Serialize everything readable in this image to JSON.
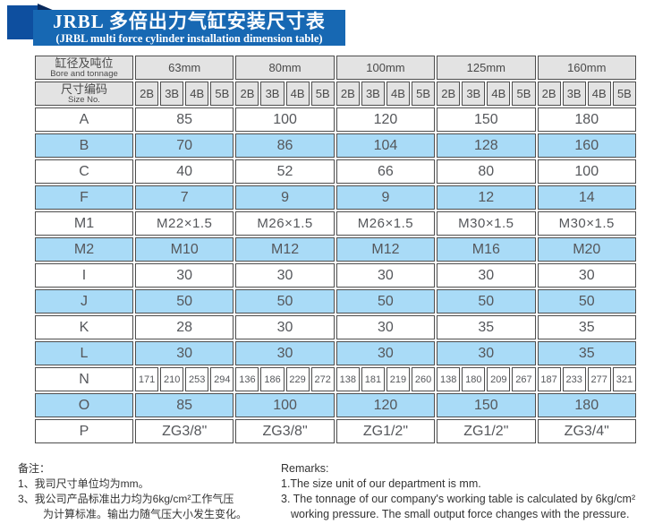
{
  "banner": {
    "title_cn": "JRBL 多倍出力气缸安装尺寸表",
    "title_en": "(JRBL multi force cylinder installation dimension table)"
  },
  "colors": {
    "banner_blue": "#1768b3",
    "ribbon_blue": "#0e4f9f",
    "fold_navy": "#092a5c",
    "header_gray": "#e3e3e3",
    "row_blue": "#a9dbf7",
    "border_gray": "#4d4d4d"
  },
  "table": {
    "corner_row1": {
      "cn": "缸径及吨位",
      "en": "Bore and tonnage"
    },
    "corner_row2": {
      "cn": "尺寸编码",
      "en": "Size No."
    },
    "bores": [
      "63mm",
      "80mm",
      "100mm",
      "125mm",
      "160mm"
    ],
    "size_codes": [
      "2B",
      "3B",
      "4B",
      "5B"
    ],
    "rows": [
      {
        "label": "A",
        "shade": false,
        "span": true,
        "values": [
          "85",
          "100",
          "120",
          "150",
          "180"
        ]
      },
      {
        "label": "B",
        "shade": true,
        "span": true,
        "values": [
          "70",
          "86",
          "104",
          "128",
          "160"
        ]
      },
      {
        "label": "C",
        "shade": false,
        "span": true,
        "values": [
          "40",
          "52",
          "66",
          "80",
          "100"
        ]
      },
      {
        "label": "F",
        "shade": true,
        "span": true,
        "values": [
          "7",
          "9",
          "9",
          "12",
          "14"
        ]
      },
      {
        "label": "M1",
        "shade": false,
        "span": true,
        "m1": true,
        "values": [
          "M22×1.5",
          "M26×1.5",
          "M26×1.5",
          "M30×1.5",
          "M30×1.5"
        ]
      },
      {
        "label": "M2",
        "shade": true,
        "span": true,
        "values": [
          "M10",
          "M12",
          "M12",
          "M16",
          "M20"
        ]
      },
      {
        "label": "I",
        "shade": false,
        "span": true,
        "values": [
          "30",
          "30",
          "30",
          "30",
          "30"
        ]
      },
      {
        "label": "J",
        "shade": true,
        "span": true,
        "values": [
          "50",
          "50",
          "50",
          "50",
          "50"
        ]
      },
      {
        "label": "K",
        "shade": false,
        "span": true,
        "values": [
          "28",
          "30",
          "30",
          "35",
          "35"
        ]
      },
      {
        "label": "L",
        "shade": true,
        "span": true,
        "values": [
          "30",
          "30",
          "30",
          "30",
          "35"
        ]
      },
      {
        "label": "N",
        "shade": false,
        "span": false,
        "values": [
          [
            "171",
            "210",
            "253",
            "294"
          ],
          [
            "136",
            "186",
            "229",
            "272"
          ],
          [
            "138",
            "181",
            "219",
            "260"
          ],
          [
            "138",
            "180",
            "209",
            "267"
          ],
          [
            "187",
            "233",
            "277",
            "321"
          ]
        ]
      },
      {
        "label": "O",
        "shade": true,
        "span": true,
        "values": [
          "85",
          "100",
          "120",
          "150",
          "180"
        ]
      },
      {
        "label": "P",
        "shade": false,
        "span": true,
        "values": [
          "ZG3/8\"",
          "ZG3/8\"",
          "ZG1/2\"",
          "ZG1/2\"",
          "ZG3/4\""
        ]
      }
    ]
  },
  "notes": {
    "cn": {
      "heading": "备注：",
      "lines": [
        {
          "text": "1、我司尺寸单位均为mm。",
          "indent": false
        },
        {
          "text": "3、我公司产品标准出力均为6kg/cm²工作气压",
          "indent": false
        },
        {
          "text": "为计算标准。输出力随气压大小发生变化。",
          "indent": true
        }
      ]
    },
    "en": {
      "heading": "Remarks:",
      "lines": [
        {
          "text": "1.The size unit of our department is mm.",
          "indent": false
        },
        {
          "text": "3. The tonnage of our company's working table is calculated by 6kg/cm²",
          "indent": false
        },
        {
          "text": "working pressure. The small output force changes with the pressure.",
          "indent": true
        }
      ]
    }
  }
}
